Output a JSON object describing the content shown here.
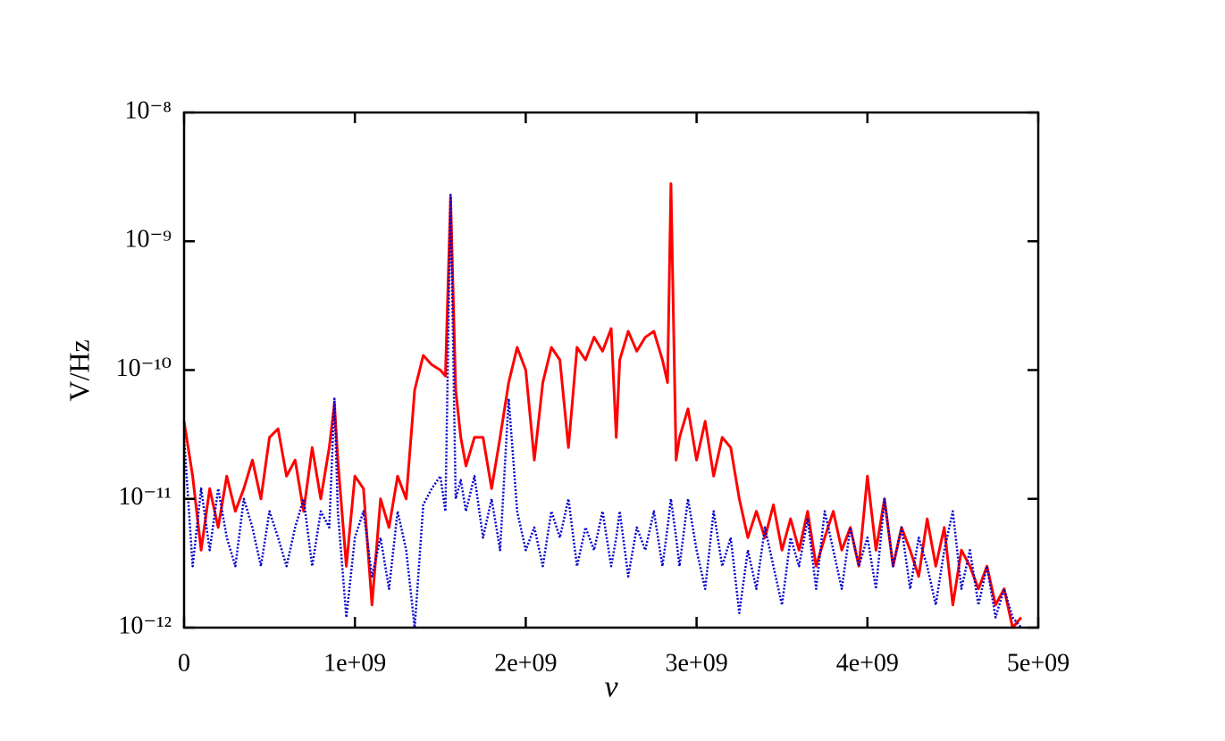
{
  "chart_data": {
    "type": "line",
    "xlabel": "ν",
    "ylabel": "V/Hz",
    "x": [
      0,
      50000000.0,
      100000000.0,
      150000000.0,
      200000000.0,
      250000000.0,
      300000000.0,
      350000000.0,
      400000000.0,
      450000000.0,
      500000000.0,
      550000000.0,
      600000000.0,
      650000000.0,
      700000000.0,
      750000000.0,
      800000000.0,
      850000000.0,
      880000000.0,
      900000000.0,
      950000000.0,
      1000000000.0,
      1050000000.0,
      1100000000.0,
      1150000000.0,
      1200000000.0,
      1250000000.0,
      1300000000.0,
      1350000000.0,
      1400000000.0,
      1450000000.0,
      1500000000.0,
      1530000000.0,
      1560000000.0,
      1590000000.0,
      1620000000.0,
      1650000000.0,
      1700000000.0,
      1750000000.0,
      1800000000.0,
      1850000000.0,
      1900000000.0,
      1950000000.0,
      2000000000.0,
      2050000000.0,
      2100000000.0,
      2150000000.0,
      2200000000.0,
      2250000000.0,
      2300000000.0,
      2350000000.0,
      2400000000.0,
      2450000000.0,
      2500000000.0,
      2530000000.0,
      2550000000.0,
      2600000000.0,
      2650000000.0,
      2700000000.0,
      2750000000.0,
      2800000000.0,
      2830000000.0,
      2850000000.0,
      2880000000.0,
      2900000000.0,
      2950000000.0,
      3000000000.0,
      3050000000.0,
      3100000000.0,
      3150000000.0,
      3200000000.0,
      3250000000.0,
      3300000000.0,
      3350000000.0,
      3400000000.0,
      3450000000.0,
      3500000000.0,
      3550000000.0,
      3600000000.0,
      3650000000.0,
      3700000000.0,
      3750000000.0,
      3800000000.0,
      3850000000.0,
      3900000000.0,
      3950000000.0,
      4000000000.0,
      4050000000.0,
      4100000000.0,
      4150000000.0,
      4200000000.0,
      4250000000.0,
      4300000000.0,
      4350000000.0,
      4400000000.0,
      4450000000.0,
      4500000000.0,
      4550000000.0,
      4600000000.0,
      4650000000.0,
      4700000000.0,
      4750000000.0,
      4800000000.0,
      4850000000.0,
      4900000000.0
    ],
    "series": [
      {
        "color": "#ff0000",
        "line_style": "solid",
        "values": [
          4e-11,
          1.5e-11,
          4e-12,
          1.2e-11,
          6e-12,
          1.5e-11,
          8e-12,
          1.2e-11,
          2e-11,
          1e-11,
          3e-11,
          3.5e-11,
          1.5e-11,
          2e-11,
          8e-12,
          2.5e-11,
          1e-11,
          2.5e-11,
          5.5e-11,
          2e-11,
          3e-12,
          1.5e-11,
          1.2e-11,
          1.5e-12,
          1e-11,
          6e-12,
          1.5e-11,
          1e-11,
          7e-11,
          1.3e-10,
          1.1e-10,
          1e-10,
          9e-11,
          2.2e-09,
          7e-11,
          3e-11,
          1.8e-11,
          3e-11,
          3e-11,
          1.2e-11,
          3e-11,
          8e-11,
          1.5e-10,
          1e-10,
          2e-11,
          8e-11,
          1.5e-10,
          1.2e-10,
          2.5e-11,
          1.5e-10,
          1.2e-10,
          1.8e-10,
          1.4e-10,
          2.1e-10,
          3e-11,
          1.2e-10,
          2e-10,
          1.4e-10,
          1.8e-10,
          2e-10,
          1.2e-10,
          8e-11,
          2.8e-09,
          2e-11,
          3e-11,
          5e-11,
          2e-11,
          4e-11,
          1.5e-11,
          3e-11,
          2.5e-11,
          1e-11,
          5e-12,
          8e-12,
          5e-12,
          9e-12,
          4e-12,
          7e-12,
          4e-12,
          8e-12,
          3e-12,
          5e-12,
          8e-12,
          4e-12,
          6e-12,
          3e-12,
          1.5e-11,
          4e-12,
          1e-11,
          3e-12,
          6e-12,
          4e-12,
          2.5e-12,
          7e-12,
          3e-12,
          6e-12,
          1.5e-12,
          4e-12,
          3e-12,
          2e-12,
          3e-12,
          1.5e-12,
          2e-12,
          1e-12,
          1.2e-12
        ]
      },
      {
        "color": "#0000cc",
        "line_style": "dotted",
        "values": [
          3e-11,
          3e-12,
          1.2e-11,
          4e-12,
          1.2e-11,
          5e-12,
          3e-12,
          1e-11,
          6e-12,
          3e-12,
          8e-12,
          5e-12,
          3e-12,
          6e-12,
          1e-11,
          3e-12,
          8e-12,
          6e-12,
          6e-11,
          8e-12,
          1.2e-12,
          5e-12,
          8e-12,
          2.5e-12,
          5e-12,
          2e-12,
          8e-12,
          4e-12,
          1e-12,
          9e-12,
          1.2e-11,
          1.5e-11,
          8e-12,
          2.3e-09,
          1e-11,
          1.4e-11,
          8e-12,
          1.5e-11,
          5e-12,
          1e-11,
          4e-12,
          6e-11,
          8e-12,
          4e-12,
          6e-12,
          3e-12,
          8e-12,
          5e-12,
          1e-11,
          3e-12,
          6e-12,
          4e-12,
          8e-12,
          3e-12,
          5e-12,
          8e-12,
          2.5e-12,
          6e-12,
          4e-12,
          8e-12,
          3e-12,
          6e-12,
          1e-11,
          5e-12,
          3e-12,
          1e-11,
          4e-12,
          2e-12,
          8e-12,
          3e-12,
          5e-12,
          1.3e-12,
          4e-12,
          2e-12,
          6e-12,
          3e-12,
          1.5e-12,
          5e-12,
          3e-12,
          7e-12,
          2e-12,
          8e-12,
          4e-12,
          2e-12,
          6e-12,
          3e-12,
          5e-12,
          2e-12,
          1e-11,
          3e-12,
          6e-12,
          2e-12,
          5e-12,
          3e-12,
          1.5e-12,
          4e-12,
          8e-12,
          2e-12,
          4e-12,
          1.5e-12,
          3e-12,
          1.2e-12,
          2e-12,
          1.2e-12,
          1e-12
        ]
      }
    ],
    "xlim": [
      0,
      5000000000
    ],
    "xticks": [
      0,
      {
        "value": 1000000000,
        "label": "1e+09"
      },
      {
        "value": 2000000000,
        "label": "2e+09"
      },
      {
        "value": 3000000000,
        "label": "3e+09"
      },
      {
        "value": 4000000000,
        "label": "4e+09"
      },
      {
        "value": 5000000000,
        "label": "5e+09"
      }
    ],
    "ylim": [
      1e-12,
      1e-08
    ],
    "log_y": true,
    "yticks": [
      {
        "value": 1e-12,
        "label": "10⁻¹²"
      },
      {
        "value": 1e-11,
        "label": "10⁻¹¹"
      },
      {
        "value": 1e-10,
        "label": "10⁻¹⁰"
      },
      {
        "value": 1e-09,
        "label": "10⁻⁹"
      },
      {
        "value": 1e-08,
        "label": "10⁻⁸"
      }
    ],
    "grid": false
  }
}
